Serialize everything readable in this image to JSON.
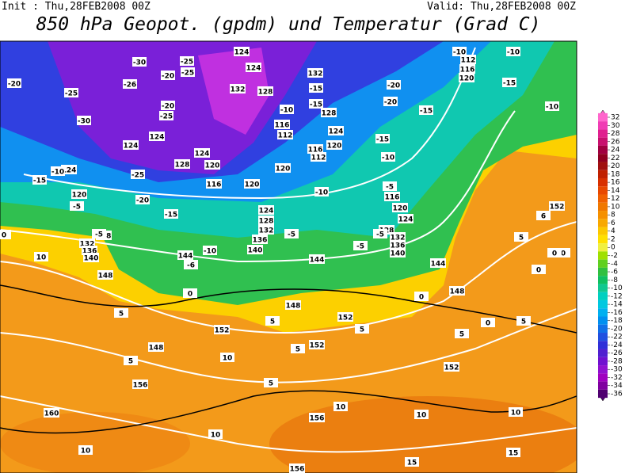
{
  "header": {
    "init": "Init : Thu,28FEB2008 00Z",
    "valid": "Valid: Thu,28FEB2008 00Z",
    "title": "850 hPa Geopot. (gpdm) und Temperatur (Grad C)"
  },
  "geopotential_labels": [
    124,
    124,
    128,
    132,
    132,
    128,
    124,
    120,
    116,
    112,
    116,
    112,
    120,
    124,
    124,
    128,
    124,
    120,
    116,
    120,
    124,
    128,
    132,
    136,
    140,
    144,
    148,
    152,
    148,
    152,
    156,
    160,
    144,
    148,
    152,
    144,
    148,
    152,
    156,
    156,
    128,
    132,
    136,
    140,
    120,
    124,
    116,
    112,
    116,
    120,
    124,
    120,
    128,
    132,
    136,
    140,
    152
  ],
  "temperature_labels": [
    -30,
    -25,
    -20,
    -25,
    -20,
    -26,
    -25,
    -30,
    -20,
    -25,
    -15,
    -15,
    -20,
    -20,
    -15,
    -10,
    -10,
    -10,
    -15,
    -10,
    -15,
    -10,
    -25,
    -20,
    -15,
    -10,
    -10,
    -5,
    -5,
    -5,
    -5,
    -6,
    -10,
    -15,
    -5,
    -5,
    0,
    10,
    0,
    5,
    5,
    5,
    5,
    10,
    5,
    5,
    10,
    10,
    10,
    10,
    10,
    15,
    15,
    0,
    0,
    5,
    5,
    5,
    6,
    0,
    0,
    0
  ],
  "colorbar": {
    "levels": [
      32,
      30,
      28,
      26,
      24,
      22,
      20,
      18,
      16,
      14,
      12,
      10,
      8,
      6,
      4,
      2,
      0,
      -2,
      -4,
      -6,
      -8,
      -10,
      -12,
      -14,
      -16,
      -18,
      -20,
      -22,
      -24,
      -26,
      -28,
      -30,
      -32,
      -34,
      -36
    ],
    "colors": [
      "#ff66cc",
      "#f03cb4",
      "#e0208f",
      "#c8106e",
      "#a00040",
      "#900020",
      "#a01010",
      "#c02000",
      "#d83000",
      "#e84800",
      "#f06000",
      "#f07800",
      "#f59000",
      "#f8a800",
      "#fcc800",
      "#ffe000",
      "#f0f040",
      "#a0e000",
      "#60d020",
      "#30c040",
      "#10c060",
      "#10c890",
      "#00d0c0",
      "#00c8e0",
      "#00b0f0",
      "#0090f0",
      "#1070e8",
      "#2050e0",
      "#3030d8",
      "#5020d0",
      "#7010d0",
      "#9010d0",
      "#a000c0",
      "#8000a0",
      "#500070"
    ]
  }
}
